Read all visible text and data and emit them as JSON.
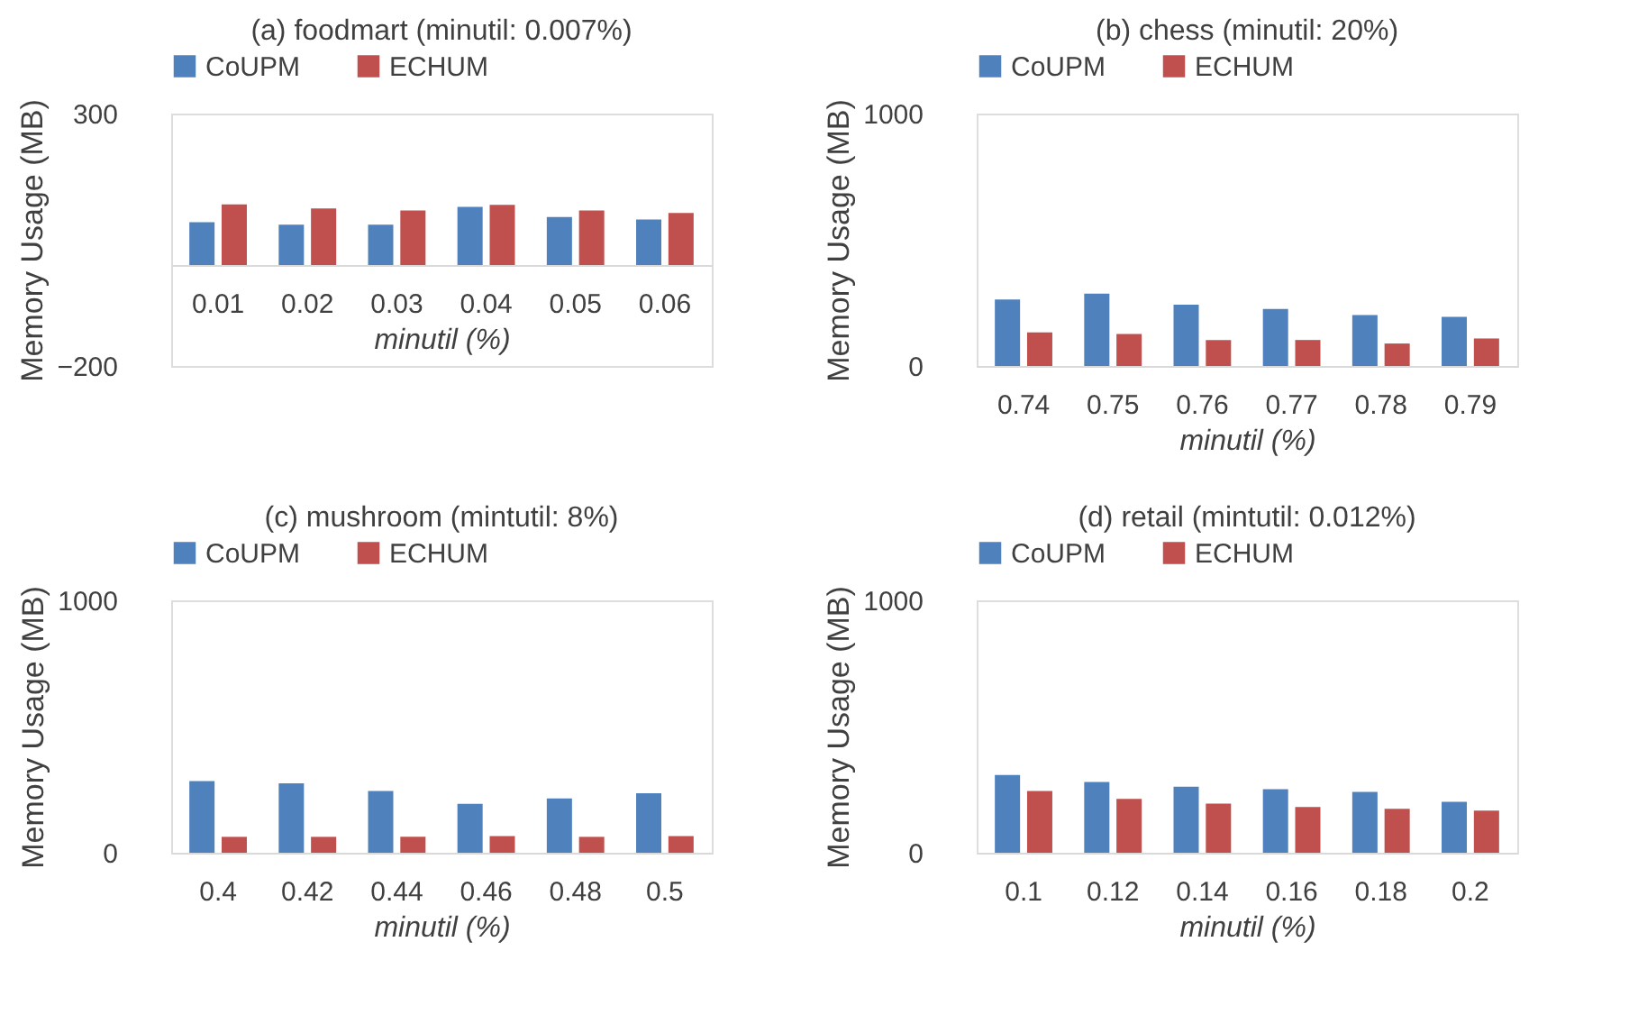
{
  "chart_data": [
    {
      "type": "bar",
      "title": "(a) foodmart (minutil: 0.007%)",
      "xlabel": "minutil (%)",
      "ylabel": "Memory Usage (MB)",
      "categories": [
        "0.01",
        "0.02",
        "0.03",
        "0.04",
        "0.05",
        "0.06"
      ],
      "ylim": [
        -200,
        300
      ],
      "yticks": [
        -200,
        300
      ],
      "grid": false,
      "legend": "top",
      "series": [
        {
          "name": "CoUPM",
          "color": "#4f81bd",
          "values": [
            85,
            80,
            80,
            115,
            95,
            90
          ]
        },
        {
          "name": "ECHUM",
          "color": "#c0504d",
          "values": [
            120,
            112,
            108,
            119,
            108,
            103
          ]
        }
      ]
    },
    {
      "type": "bar",
      "title": "(b) chess (minutil: 20%)",
      "xlabel": "minutil (%)",
      "ylabel": "Memory Usage (MB)",
      "categories": [
        "0.74",
        "0.75",
        "0.76",
        "0.77",
        "0.78",
        "0.79"
      ],
      "ylim": [
        0,
        1000
      ],
      "yticks": [
        0,
        1000
      ],
      "grid": false,
      "legend": "top",
      "series": [
        {
          "name": "CoUPM",
          "color": "#4f81bd",
          "values": [
            263,
            287,
            243,
            226,
            202,
            195
          ]
        },
        {
          "name": "ECHUM",
          "color": "#c0504d",
          "values": [
            133,
            127,
            103,
            103,
            89,
            109
          ]
        }
      ]
    },
    {
      "type": "bar",
      "title": "(c) mushroom (mintutil: 8%)",
      "xlabel": "minutil (%)",
      "ylabel": "Memory Usage (MB)",
      "categories": [
        "0.4",
        "0.42",
        "0.44",
        "0.46",
        "0.48",
        "0.5"
      ],
      "ylim": [
        0,
        1000
      ],
      "yticks": [
        0,
        1000
      ],
      "grid": false,
      "legend": "top",
      "series": [
        {
          "name": "CoUPM",
          "color": "#4f81bd",
          "values": [
            284,
            275,
            245,
            194,
            215,
            236
          ]
        },
        {
          "name": "ECHUM",
          "color": "#c0504d",
          "values": [
            63,
            63,
            63,
            66,
            63,
            66
          ]
        }
      ]
    },
    {
      "type": "bar",
      "title": "(d) retail (mintutil: 0.012%)",
      "xlabel": "minutil (%)",
      "ylabel": "Memory Usage (MB)",
      "categories": [
        "0.1",
        "0.12",
        "0.14",
        "0.16",
        "0.18",
        "0.2"
      ],
      "ylim": [
        0,
        1000
      ],
      "yticks": [
        0,
        1000
      ],
      "grid": false,
      "legend": "top",
      "series": [
        {
          "name": "CoUPM",
          "color": "#4f81bd",
          "values": [
            308,
            280,
            262,
            252,
            241,
            202
          ]
        },
        {
          "name": "ECHUM",
          "color": "#c0504d",
          "values": [
            245,
            213,
            195,
            181,
            174,
            167
          ]
        }
      ]
    }
  ]
}
